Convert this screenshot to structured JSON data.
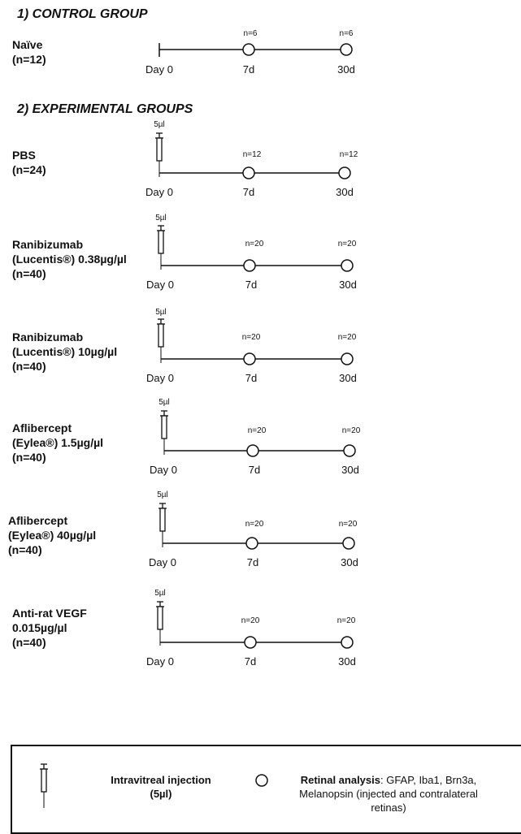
{
  "sections": {
    "control_title": "1) CONTROL GROUP",
    "experimental_title": "2) EXPERIMENTAL GROUPS"
  },
  "timeline_ticks": [
    "Day 0",
    "7d",
    "30d"
  ],
  "dose_label": "5µl",
  "groups": [
    {
      "lines": [
        "Naïve",
        "(n=12)"
      ],
      "injection": false,
      "n_7d": "n=6",
      "n_30d": "n=6"
    },
    {
      "lines": [
        "PBS",
        "(n=24)"
      ],
      "injection": true,
      "n_7d": "n=12",
      "n_30d": "n=12"
    },
    {
      "lines": [
        "Ranibizumab",
        "(Lucentis®) 0.38µg/µl",
        "(n=40)"
      ],
      "injection": true,
      "n_7d": "n=20",
      "n_30d": "n=20"
    },
    {
      "lines": [
        "Ranibizumab",
        "(Lucentis®) 10µg/µl",
        "(n=40)"
      ],
      "injection": true,
      "n_7d": "n=20",
      "n_30d": "n=20"
    },
    {
      "lines": [
        "Aflibercept",
        "(Eylea®) 1.5µg/µl",
        "(n=40)"
      ],
      "injection": true,
      "n_7d": "n=20",
      "n_30d": "n=20"
    },
    {
      "lines": [
        "Aflibercept",
        "(Eylea®) 40µg/µl",
        "(n=40)"
      ],
      "injection": true,
      "n_7d": "n=20",
      "n_30d": "n=20"
    },
    {
      "lines": [
        "Anti-rat VEGF",
        "0.015µg/µl",
        "(n=40)"
      ],
      "injection": true,
      "n_7d": "n=20",
      "n_30d": "n=20"
    }
  ],
  "legend": {
    "injection_label": "Intravitreal injection (5µl)",
    "retinal_bold": "Retinal analysis",
    "retinal_rest": ": GFAP, Iba1, Brn3a, Melanopsin (injected and contralateral retinas)"
  }
}
